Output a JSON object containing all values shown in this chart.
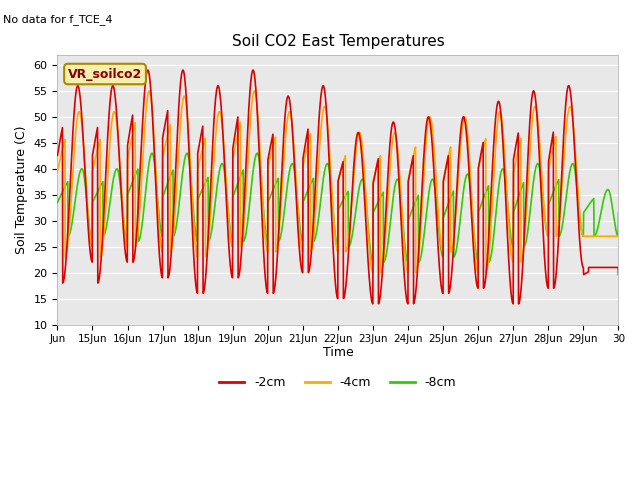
{
  "title": "Soil CO2 East Temperatures",
  "no_data_text": "No data for f_TCE_4",
  "ylabel": "Soil Temperature (C)",
  "xlabel": "Time",
  "ylim": [
    10,
    62
  ],
  "yticks": [
    10,
    15,
    20,
    25,
    30,
    35,
    40,
    45,
    50,
    55,
    60
  ],
  "x_tick_labels": [
    "Jun",
    "15Jun",
    "16Jun",
    "17Jun",
    "18Jun",
    "19Jun",
    "20Jun",
    "21Jun",
    "22Jun",
    "23Jun",
    "24Jun",
    "25Jun",
    "26Jun",
    "27Jun",
    "28Jun",
    "29Jun",
    "30"
  ],
  "legend_labels": [
    "-2cm",
    "-4cm",
    "-8cm"
  ],
  "legend_colors": [
    "#dd0000",
    "#ffaa00",
    "#33cc00"
  ],
  "line_colors": {
    "minus2cm": "#dd0000",
    "minus4cm": "#ffaa00",
    "minus8cm": "#33cc00"
  },
  "annotation_box": "VR_soilco2",
  "background_color": "#e8e8e8",
  "red_peaks": [
    56,
    59,
    59,
    56,
    59,
    54,
    56,
    47,
    49,
    50,
    50,
    53,
    55,
    56,
    21
  ],
  "red_troughs": [
    18,
    22,
    19,
    16,
    19,
    16,
    20,
    15,
    14,
    14,
    16,
    17,
    14,
    17,
    21
  ],
  "orange_peaks": [
    51,
    55,
    54,
    51,
    55,
    51,
    52,
    47,
    47,
    50,
    50,
    51,
    52,
    52,
    27
  ],
  "orange_troughs": [
    23,
    25,
    24,
    23,
    25,
    24,
    24,
    24,
    20,
    20,
    24,
    20,
    22,
    27,
    27
  ],
  "green_peaks": [
    40,
    43,
    43,
    41,
    43,
    41,
    41,
    38,
    38,
    38,
    39,
    40,
    41,
    41,
    36
  ],
  "green_troughs": [
    27,
    26,
    27,
    26,
    26,
    26,
    26,
    25,
    22,
    22,
    23,
    22,
    25,
    27,
    27
  ],
  "red_phase": 0.18,
  "orange_phase": 0.22,
  "green_phase": 0.3
}
